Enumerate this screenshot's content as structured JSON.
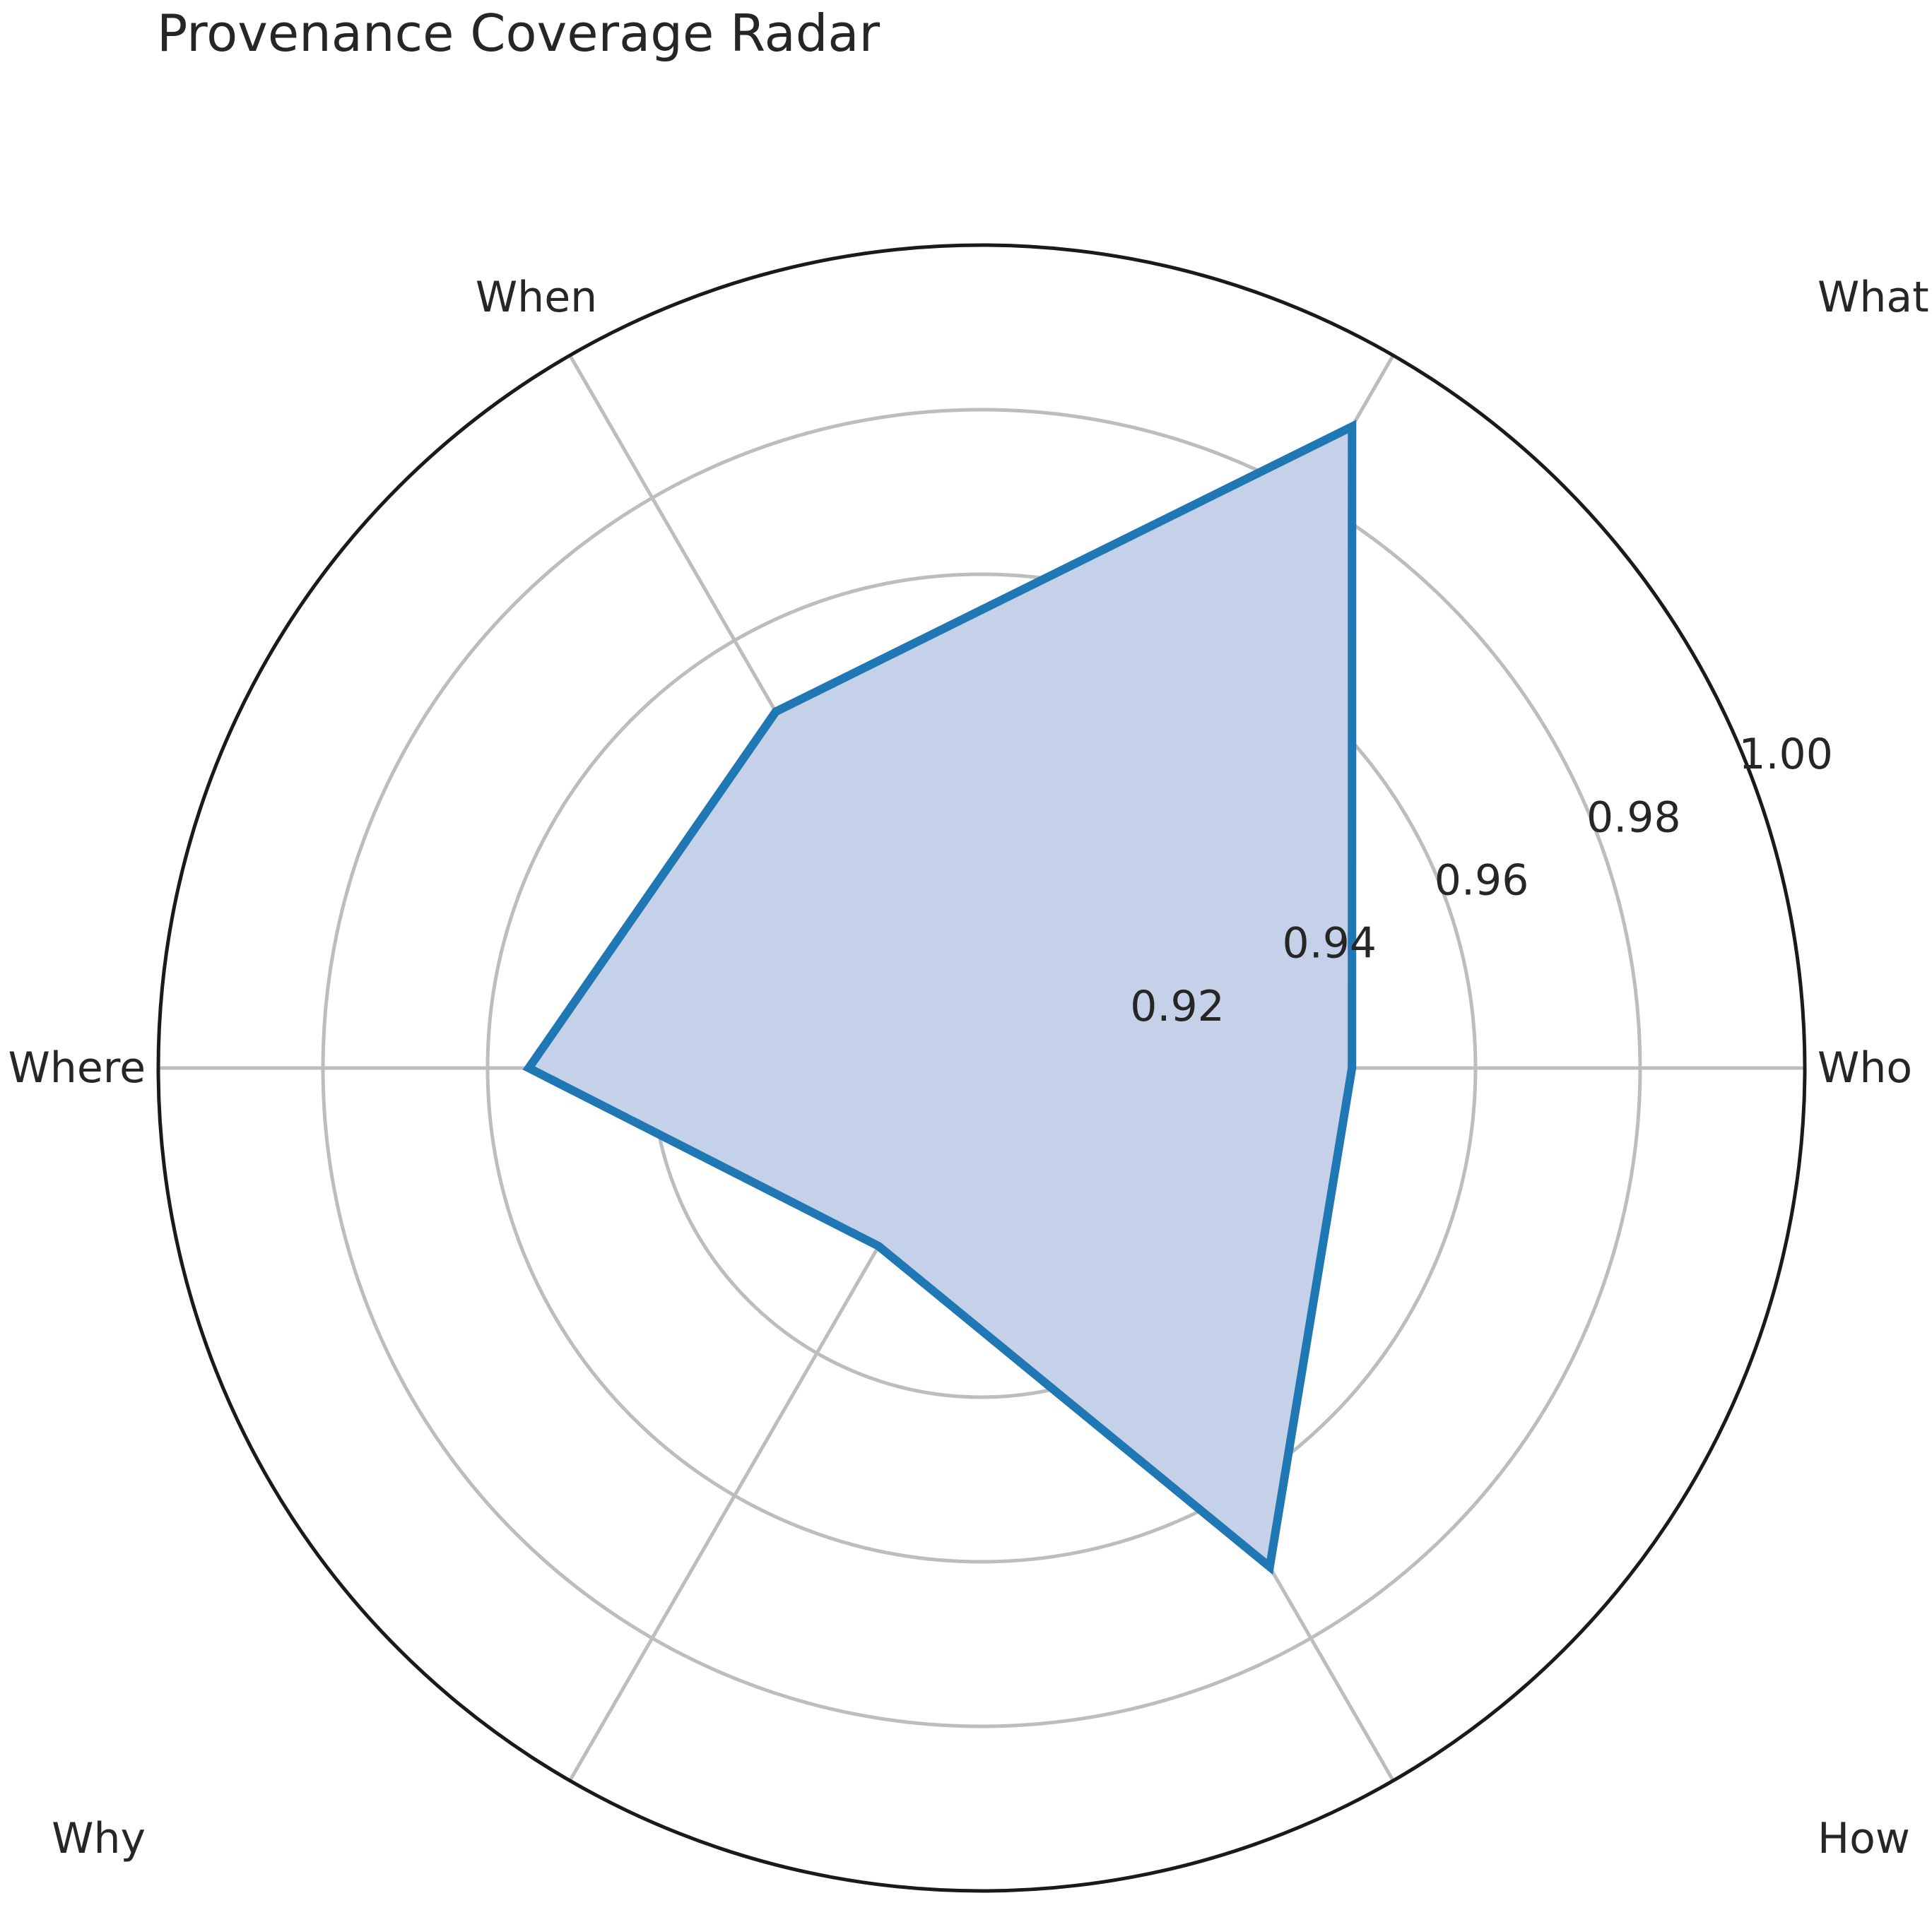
{
  "chart_data": {
    "type": "radar",
    "title": "Provenance Coverage Radar",
    "categories": [
      "Who",
      "What",
      "When",
      "Where",
      "Why",
      "How"
    ],
    "series": [
      {
        "values": [
          0.945,
          0.99,
          0.95,
          0.955,
          0.925,
          0.97
        ]
      }
    ],
    "radial_ticks": [
      "0.92",
      "0.94",
      "0.96",
      "0.98",
      "1.00"
    ],
    "radial_tick_values": [
      0.92,
      0.94,
      0.96,
      0.98,
      1.0
    ],
    "rlim": [
      0.9,
      1.0
    ],
    "grid": true,
    "colors": {
      "line": "#1f77b4",
      "fill": "#c4d1e8",
      "grid": "#bdbdbd",
      "frame": "#1a1a1a",
      "text": "#262626"
    }
  }
}
